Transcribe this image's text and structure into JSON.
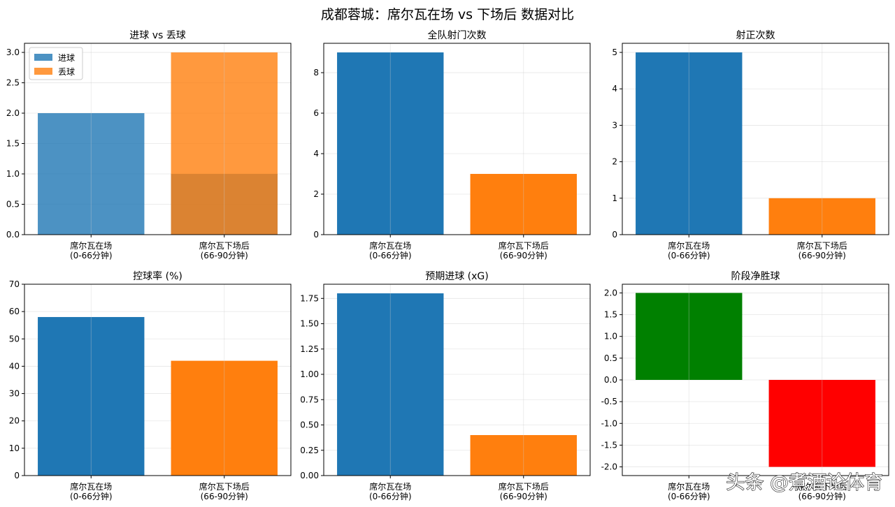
{
  "figure_title": "成都蓉城：席尔瓦在场 vs 下场后 数据对比",
  "watermark": "头条 @煮酒论体育",
  "categories": [
    [
      "席尔瓦在场",
      "(0-66分钟)"
    ],
    [
      "席尔瓦下场后",
      "(66-90分钟)"
    ]
  ],
  "colors": {
    "blue": "#1f77b4",
    "orange": "#ff7f0e",
    "green": "#008000",
    "red": "#ff0000"
  },
  "chart_data": [
    {
      "type": "bar",
      "title": "进球 vs 丢球",
      "categories": [
        "席尔瓦在场\n(0-66分钟)",
        "席尔瓦下场后\n(66-90分钟)"
      ],
      "series": [
        {
          "name": "进球",
          "values": [
            2,
            1
          ],
          "color": "#1f77b4",
          "alpha": 0.8
        },
        {
          "name": "丢球",
          "values": [
            0,
            3
          ],
          "color": "#ff7f0e",
          "alpha": 0.8
        }
      ],
      "ylim": [
        0,
        3.15
      ],
      "yticks": [
        0.0,
        0.5,
        1.0,
        1.5,
        2.0,
        2.5,
        3.0
      ],
      "tick_decimals": 1,
      "legend": "top-left",
      "grid": true
    },
    {
      "type": "bar",
      "title": "全队射门次数",
      "categories": [
        "席尔瓦在场\n(0-66分钟)",
        "席尔瓦下场后\n(66-90分钟)"
      ],
      "values": [
        9,
        3
      ],
      "colors": [
        "#1f77b4",
        "#ff7f0e"
      ],
      "ylim": [
        0,
        9.45
      ],
      "yticks": [
        0,
        2,
        4,
        6,
        8
      ],
      "tick_decimals": 0,
      "grid": true
    },
    {
      "type": "bar",
      "title": "射正次数",
      "categories": [
        "席尔瓦在场\n(0-66分钟)",
        "席尔瓦下场后\n(66-90分钟)"
      ],
      "values": [
        5,
        1
      ],
      "colors": [
        "#1f77b4",
        "#ff7f0e"
      ],
      "ylim": [
        0,
        5.25
      ],
      "yticks": [
        0,
        1,
        2,
        3,
        4,
        5
      ],
      "tick_decimals": 0,
      "grid": true
    },
    {
      "type": "bar",
      "title": "控球率 (%)",
      "categories": [
        "席尔瓦在场\n(0-66分钟)",
        "席尔瓦下场后\n(66-90分钟)"
      ],
      "values": [
        58,
        42
      ],
      "colors": [
        "#1f77b4",
        "#ff7f0e"
      ],
      "ylim": [
        0,
        70
      ],
      "yticks": [
        0,
        10,
        20,
        30,
        40,
        50,
        60,
        70
      ],
      "tick_decimals": 0,
      "grid": true
    },
    {
      "type": "bar",
      "title": "预期进球 (xG)",
      "categories": [
        "席尔瓦在场\n(0-66分钟)",
        "席尔瓦下场后\n(66-90分钟)"
      ],
      "values": [
        1.8,
        0.4
      ],
      "colors": [
        "#1f77b4",
        "#ff7f0e"
      ],
      "ylim": [
        0,
        1.89
      ],
      "yticks": [
        0.0,
        0.25,
        0.5,
        0.75,
        1.0,
        1.25,
        1.5,
        1.75
      ],
      "tick_decimals": 2,
      "grid": true
    },
    {
      "type": "bar",
      "title": "阶段净胜球",
      "categories": [
        "席尔瓦在场\n(0-66分钟)",
        "席尔瓦下场后\n(66-90分钟)"
      ],
      "values": [
        2,
        -2
      ],
      "colors": [
        "#008000",
        "#ff0000"
      ],
      "ylim": [
        -2.2,
        2.2
      ],
      "yticks": [
        -2.0,
        -1.5,
        -1.0,
        -0.5,
        0.0,
        0.5,
        1.0,
        1.5,
        2.0
      ],
      "tick_decimals": 1,
      "grid": true
    }
  ]
}
